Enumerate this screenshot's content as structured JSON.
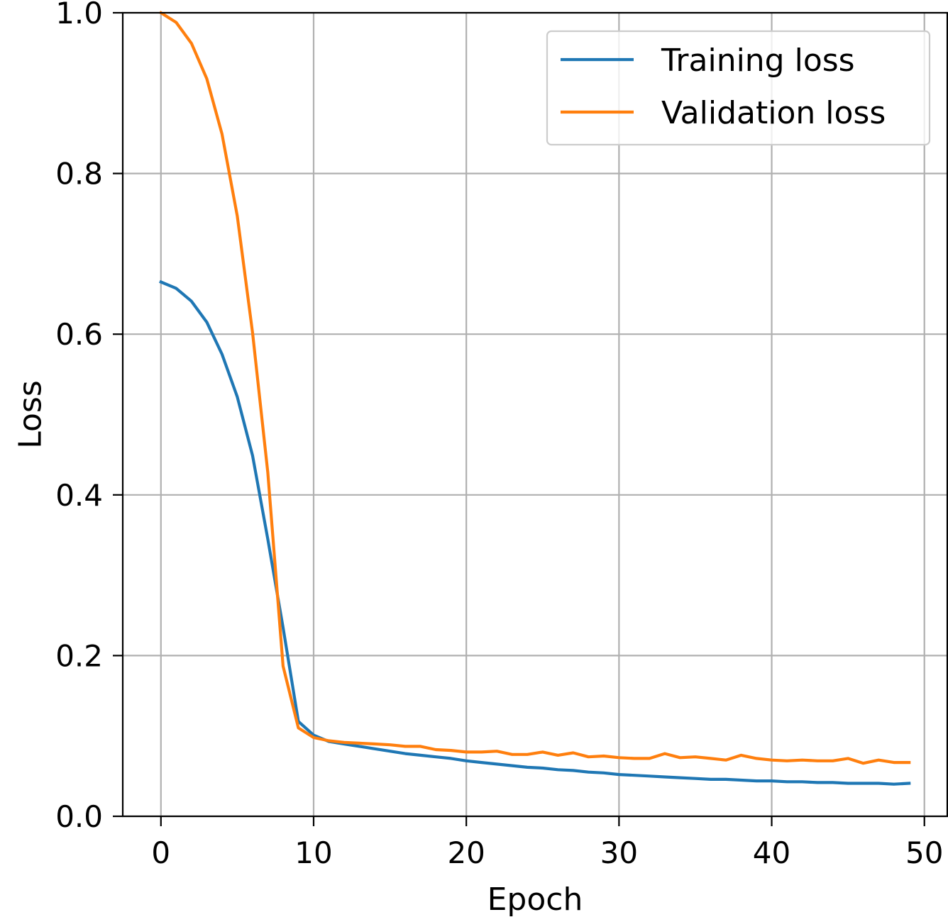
{
  "chart_data": {
    "type": "line",
    "title": "",
    "xlabel": "Epoch",
    "ylabel": "Loss",
    "xlim": [
      -2.5,
      51.5
    ],
    "ylim": [
      0.0,
      1.0
    ],
    "x_ticks": [
      "0",
      "10",
      "20",
      "30",
      "40",
      "50"
    ],
    "x_tick_values": [
      0,
      10,
      20,
      30,
      40,
      50
    ],
    "y_ticks": [
      "0.0",
      "0.2",
      "0.4",
      "0.6",
      "0.8",
      "1.0"
    ],
    "y_tick_values": [
      0.0,
      0.2,
      0.4,
      0.6,
      0.8,
      1.0
    ],
    "grid": true,
    "legend_position": "top-right",
    "x": [
      0,
      1,
      2,
      3,
      4,
      5,
      6,
      7,
      8,
      9,
      10,
      11,
      12,
      13,
      14,
      15,
      16,
      17,
      18,
      19,
      20,
      21,
      22,
      23,
      24,
      25,
      26,
      27,
      28,
      29,
      30,
      31,
      32,
      33,
      34,
      35,
      36,
      37,
      38,
      39,
      40,
      41,
      42,
      43,
      44,
      45,
      46,
      47,
      48,
      49
    ],
    "series": [
      {
        "name": "Training loss",
        "color": "#1f77b4",
        "values": [
          0.665,
          0.657,
          0.641,
          0.615,
          0.575,
          0.522,
          0.449,
          0.345,
          0.235,
          0.118,
          0.101,
          0.093,
          0.09,
          0.087,
          0.084,
          0.081,
          0.078,
          0.076,
          0.074,
          0.072,
          0.069,
          0.067,
          0.065,
          0.063,
          0.061,
          0.06,
          0.058,
          0.057,
          0.055,
          0.054,
          0.052,
          0.051,
          0.05,
          0.049,
          0.048,
          0.047,
          0.046,
          0.046,
          0.045,
          0.044,
          0.044,
          0.043,
          0.043,
          0.042,
          0.042,
          0.041,
          0.041,
          0.041,
          0.04,
          0.041
        ]
      },
      {
        "name": "Validation loss",
        "color": "#ff7f0e",
        "values": [
          1.0,
          0.988,
          0.962,
          0.918,
          0.849,
          0.747,
          0.602,
          0.428,
          0.187,
          0.11,
          0.098,
          0.094,
          0.092,
          0.091,
          0.09,
          0.089,
          0.087,
          0.087,
          0.083,
          0.082,
          0.08,
          0.08,
          0.081,
          0.077,
          0.077,
          0.08,
          0.076,
          0.079,
          0.074,
          0.075,
          0.073,
          0.072,
          0.072,
          0.078,
          0.073,
          0.074,
          0.072,
          0.07,
          0.076,
          0.072,
          0.07,
          0.069,
          0.07,
          0.069,
          0.069,
          0.072,
          0.066,
          0.07,
          0.067,
          0.067
        ]
      }
    ]
  }
}
